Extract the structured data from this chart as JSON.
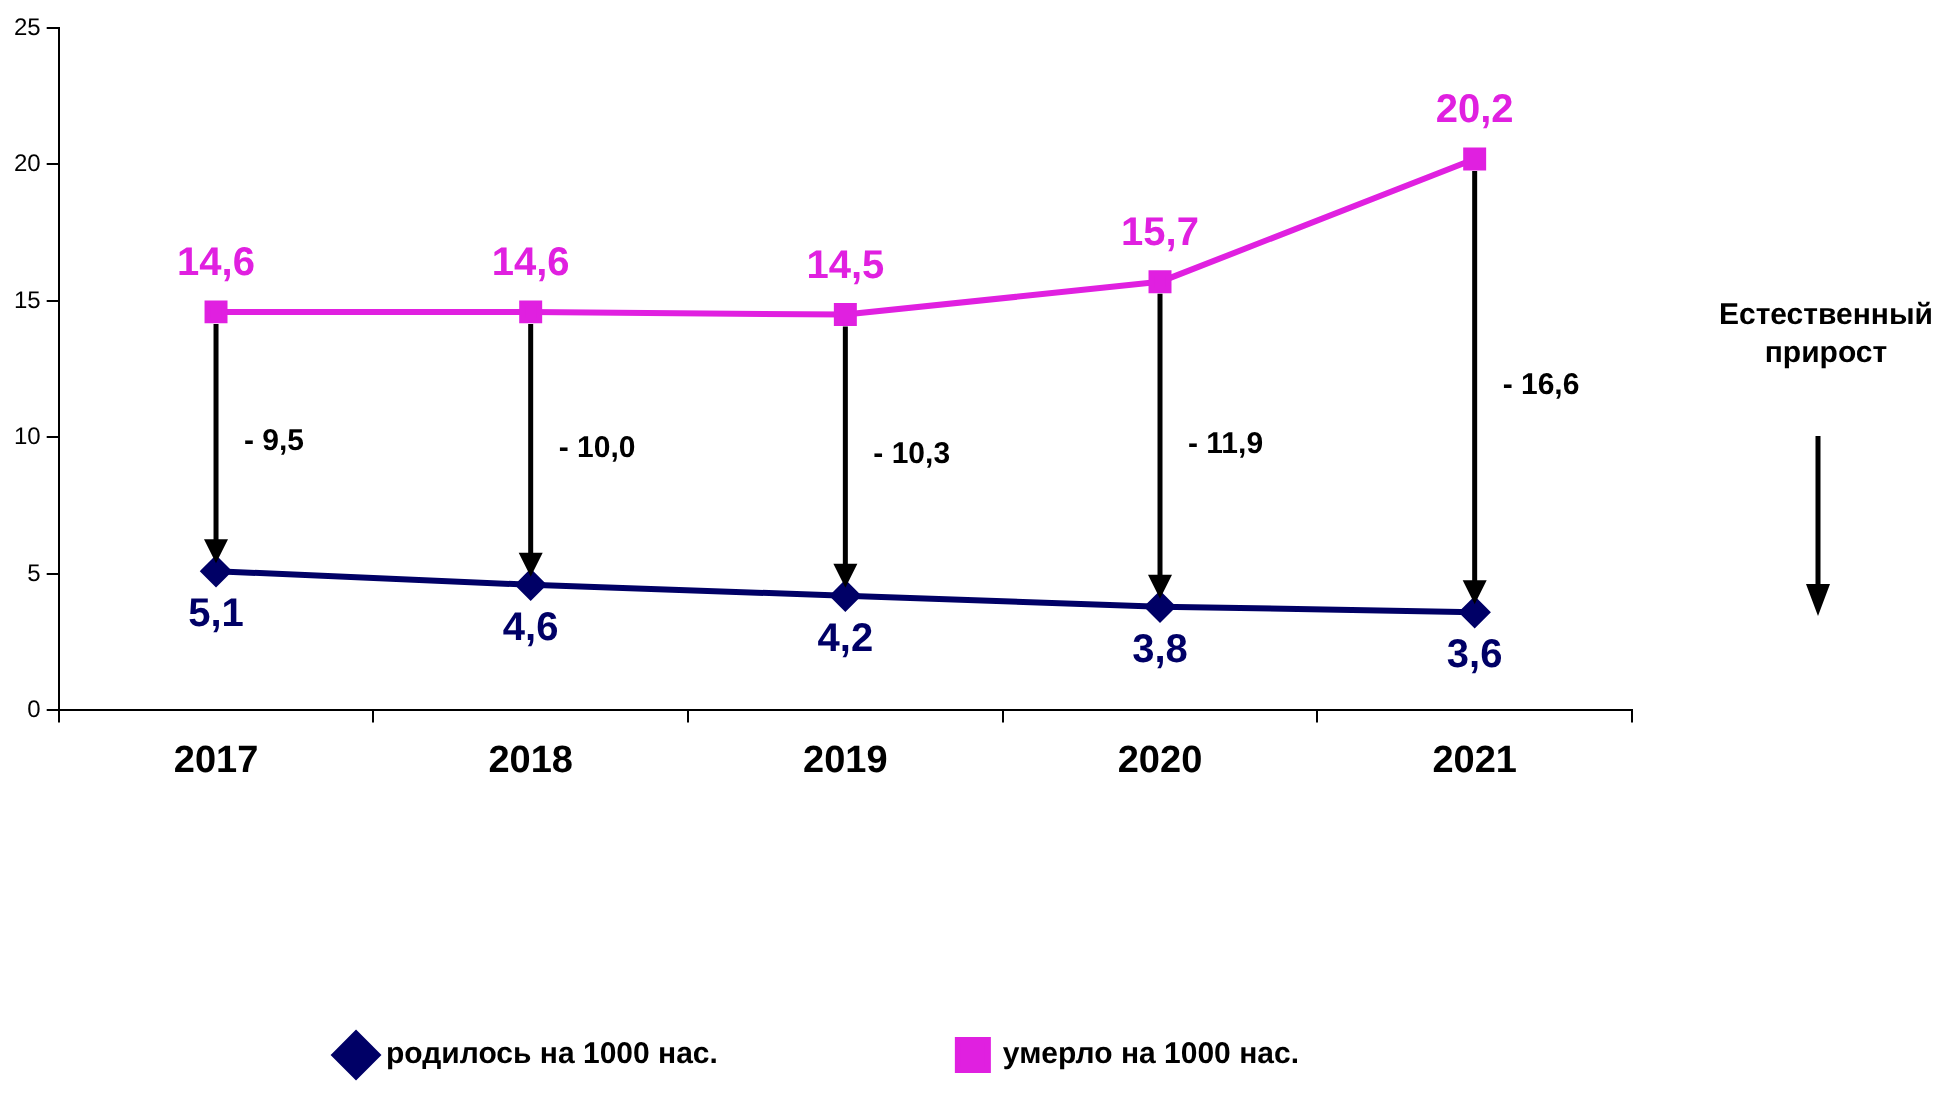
{
  "chart_data": {
    "type": "line",
    "categories": [
      "2017",
      "2018",
      "2019",
      "2020",
      "2021"
    ],
    "series": [
      {
        "name": "родилось на 1000 нас.",
        "color": "#000066",
        "marker": "diamond",
        "values": [
          5.1,
          4.6,
          4.2,
          3.8,
          3.6
        ],
        "value_labels": [
          "5,1",
          "4,6",
          "4,2",
          "3,8",
          "3,6"
        ]
      },
      {
        "name": "умерло на 1000 нас.",
        "color": "#e020e0",
        "marker": "square",
        "values": [
          14.6,
          14.6,
          14.5,
          15.7,
          20.2
        ],
        "value_labels": [
          "14,6",
          "14,6",
          "14,5",
          "15,7",
          "20,2"
        ]
      }
    ],
    "ylim": [
      0,
      25
    ],
    "yticks": [
      0,
      5,
      10,
      15,
      20,
      25
    ],
    "grid": false,
    "legend": "bottom",
    "line_style": "solid",
    "annotations": [
      "- 9,5",
      "- 10,0",
      "- 10,3",
      "- 11,9",
      "- 16,6",
      "Естественный прирост"
    ]
  }
}
